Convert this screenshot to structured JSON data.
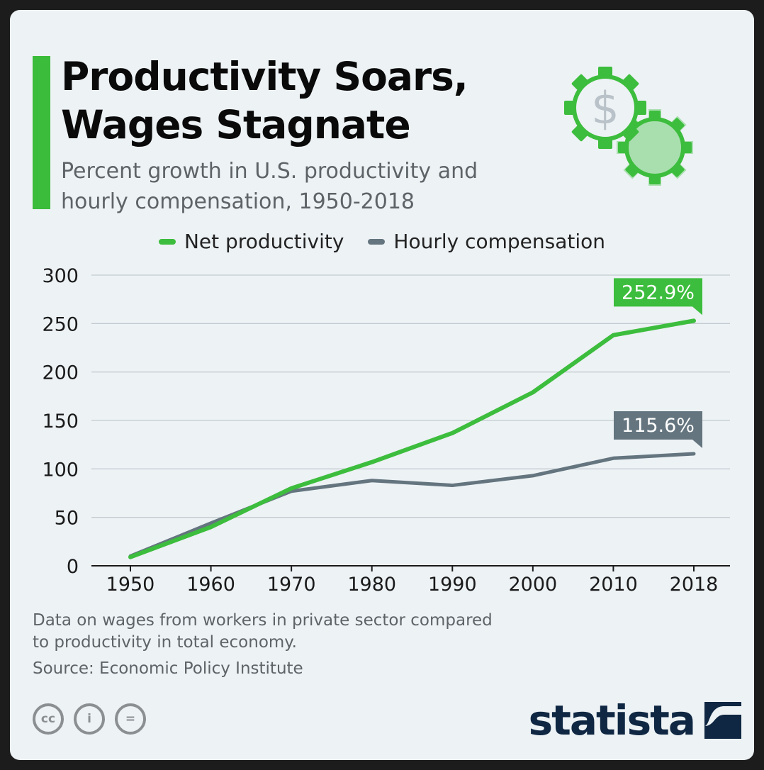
{
  "header": {
    "title_line1": "Productivity Soars,",
    "title_line2": "Wages Stagnate",
    "subtitle_line1": "Percent growth in U.S. productivity and",
    "subtitle_line2": "hourly compensation, 1950-2018"
  },
  "decoration": {
    "icon": "gears-with-dollar-icon",
    "symbol": "$"
  },
  "colors": {
    "accent": "#3bbc3b",
    "productivity": "#3dbd3d",
    "compensation": "#64757f",
    "grid": "#c3cbd0",
    "brand": "#0f2742"
  },
  "chart_data": {
    "type": "line",
    "title": "Productivity Soars, Wages Stagnate",
    "subtitle": "Percent growth in U.S. productivity and hourly compensation, 1950-2018",
    "x": [
      1950,
      1960,
      1970,
      1980,
      1990,
      2000,
      2010,
      2018
    ],
    "x_tick_labels": [
      "1950",
      "1960",
      "1970",
      "1980",
      "1990",
      "2000",
      "2010",
      "2018"
    ],
    "ylim": [
      0,
      300
    ],
    "y_ticks": [
      0,
      50,
      100,
      150,
      200,
      250,
      300
    ],
    "y_tick_labels": [
      "0",
      "50",
      "100",
      "150",
      "200",
      "250",
      "300"
    ],
    "grid": true,
    "legend_position": "top-center",
    "series": [
      {
        "name": "Net productivity",
        "color": "#3dbd3d",
        "values": [
          9,
          40,
          80,
          107,
          137,
          179,
          238,
          252.9
        ],
        "end_label": "252.9%"
      },
      {
        "name": "Hourly compensation",
        "color": "#64757f",
        "values": [
          10,
          44,
          77,
          88,
          83,
          93,
          111,
          115.6
        ],
        "end_label": "115.6%"
      }
    ]
  },
  "footer": {
    "note_line1": "Data on wages from workers in private sector compared",
    "note_line2": "to productivity in total economy.",
    "source": "Source: Economic Policy Institute",
    "license_icons": [
      {
        "name": "creative-commons-icon",
        "text": "cc"
      },
      {
        "name": "attribution-icon",
        "text": "i"
      },
      {
        "name": "no-derivatives-icon",
        "text": "="
      }
    ],
    "brand": "statista",
    "brand_icon": "statista-logo-icon"
  }
}
